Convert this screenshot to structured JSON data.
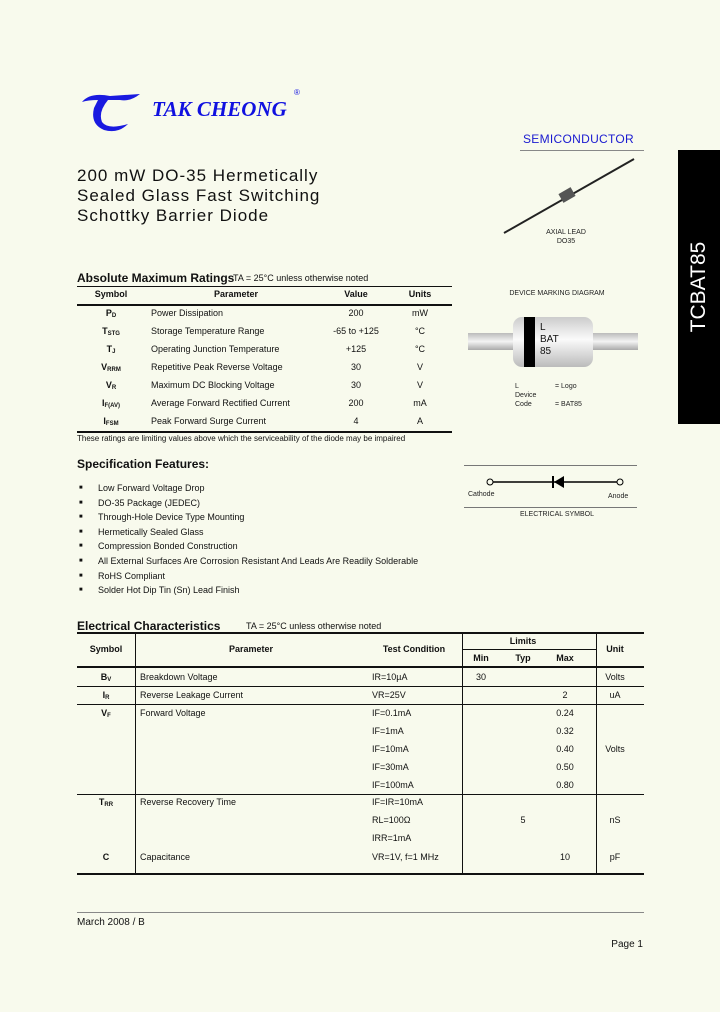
{
  "brand": {
    "name": "TAK CHEONG",
    "registered": "®",
    "division": "SEMICONDUCTOR",
    "logo_color": "#1010e0"
  },
  "part_number": "TCBAT85",
  "title": [
    "200 mW DO-35 Hermetically",
    "Sealed Glass Fast Switching",
    "Schottky Barrier Diode"
  ],
  "package": {
    "label1": "AXIAL LEAD",
    "label2": "DO35"
  },
  "marking": {
    "title": "DEVICE MARKING DIAGRAM",
    "lines": [
      "L",
      "BAT",
      "85"
    ],
    "legend": [
      {
        "k": "L",
        "v": "= Logo"
      },
      {
        "k": "Device Code",
        "v": "= BAT85"
      }
    ]
  },
  "symbol": {
    "cathode": "Cathode",
    "anode": "Anode",
    "caption": "ELECTRICAL SYMBOL"
  },
  "abs_max": {
    "heading": "Absolute Maximum Ratings",
    "condition": "TA = 25°C unless otherwise noted",
    "headers": [
      "Symbol",
      "Parameter",
      "Value",
      "Units"
    ],
    "rows": [
      {
        "sym": "P",
        "sub": "D",
        "param": "Power Dissipation",
        "value": "200",
        "unit": "mW"
      },
      {
        "sym": "T",
        "sub": "STG",
        "param": "Storage Temperature Range",
        "value": "-65 to +125",
        "unit": "°C"
      },
      {
        "sym": "T",
        "sub": "J",
        "param": "Operating Junction Temperature",
        "value": "+125",
        "unit": "°C"
      },
      {
        "sym": "V",
        "sub": "RRM",
        "param": "Repetitive Peak Reverse Voltage",
        "value": "30",
        "unit": "V"
      },
      {
        "sym": "V",
        "sub": "R",
        "param": "Maximum DC Blocking Voltage",
        "value": "30",
        "unit": "V"
      },
      {
        "sym": "I",
        "sub": "F(AV)",
        "param": "Average Forward Rectified Current",
        "value": "200",
        "unit": "mA"
      },
      {
        "sym": "I",
        "sub": "FSM",
        "param": "Peak Forward Surge Current",
        "value": "4",
        "unit": "A"
      }
    ],
    "footnote": "These ratings are limiting values above which the serviceability of the diode may be impaired"
  },
  "features": {
    "heading": "Specification Features:",
    "items": [
      "Low Forward Voltage Drop",
      "DO-35 Package (JEDEC)",
      "Through-Hole Device Type Mounting",
      "Hermetically Sealed Glass",
      "Compression Bonded Construction",
      "All External Surfaces Are Corrosion Resistant And Leads Are Readily Solderable",
      "RoHS Compliant",
      "Solder Hot Dip Tin (Sn) Lead Finish"
    ]
  },
  "electrical": {
    "heading": "Electrical Characteristics",
    "condition": "TA = 25°C unless otherwise noted",
    "headers": {
      "symbol": "Symbol",
      "parameter": "Parameter",
      "test": "Test Condition",
      "limits": "Limits",
      "min": "Min",
      "typ": "Typ",
      "max": "Max",
      "unit": "Unit"
    },
    "rows": [
      {
        "sym": "B",
        "sub": "V",
        "param": "Breakdown Voltage",
        "test": "IR=10µA",
        "min": "30",
        "typ": "",
        "max": "",
        "unit": "Volts"
      },
      {
        "sym": "I",
        "sub": "R",
        "param": "Reverse Leakage Current",
        "test": "VR=25V",
        "min": "",
        "typ": "",
        "max": "2",
        "unit": "uA"
      },
      {
        "sym": "V",
        "sub": "F",
        "param": "Forward Voltage",
        "test": "IF=0.1mA",
        "min": "",
        "typ": "",
        "max": "0.24",
        "unit": ""
      },
      {
        "sym": "",
        "sub": "",
        "param": "",
        "test": "IF=1mA",
        "min": "",
        "typ": "",
        "max": "0.32",
        "unit": ""
      },
      {
        "sym": "",
        "sub": "",
        "param": "",
        "test": "IF=10mA",
        "min": "",
        "typ": "",
        "max": "0.40",
        "unit": "Volts"
      },
      {
        "sym": "",
        "sub": "",
        "param": "",
        "test": "IF=30mA",
        "min": "",
        "typ": "",
        "max": "0.50",
        "unit": ""
      },
      {
        "sym": "",
        "sub": "",
        "param": "",
        "test": "IF=100mA",
        "min": "",
        "typ": "",
        "max": "0.80",
        "unit": ""
      },
      {
        "sym": "T",
        "sub": "RR",
        "param": "Reverse Recovery Time",
        "test": "IF=IR=10mA",
        "min": "",
        "typ": "",
        "max": "",
        "unit": ""
      },
      {
        "sym": "",
        "sub": "",
        "param": "",
        "test": "RL=100Ω",
        "min": "",
        "typ": "5",
        "max": "",
        "unit": "nS"
      },
      {
        "sym": "",
        "sub": "",
        "param": "",
        "test": "IRR=1mA",
        "min": "",
        "typ": "",
        "max": "",
        "unit": ""
      },
      {
        "sym": "C",
        "sub": "",
        "param": "Capacitance",
        "test": "VR=1V, f=1 MHz",
        "min": "",
        "typ": "",
        "max": "10",
        "unit": "pF"
      }
    ]
  },
  "footer": {
    "revision": "March 2008 / B",
    "page": "Page 1"
  }
}
